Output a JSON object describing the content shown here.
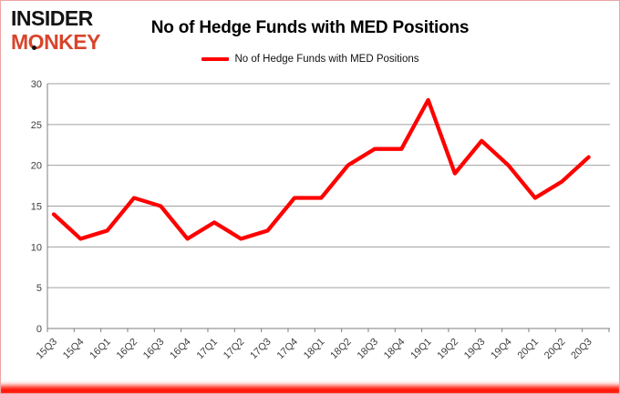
{
  "brand": {
    "line1": "INSIDER",
    "line2": "MONKEY"
  },
  "header": {
    "title": "No of Hedge Funds with MED Positions"
  },
  "legend": {
    "label": "No of Hedge Funds with MED Positions"
  },
  "colors": {
    "series_red": "#ff0000",
    "brand_red": "#d8452b",
    "gridline": "#a0a0a0",
    "axis": "#7f7f7f",
    "tick_label": "#3d3d3d",
    "border_pink": "#eda6a6",
    "bottom_bar_red": "#ff0f00"
  },
  "chart_data": {
    "type": "line",
    "title": "No of Hedge Funds with MED Positions",
    "categories": [
      "15Q3",
      "15Q4",
      "16Q1",
      "16Q2",
      "16Q3",
      "16Q4",
      "17Q1",
      "17Q2",
      "17Q3",
      "17Q4",
      "18Q1",
      "18Q2",
      "18Q3",
      "18Q4",
      "19Q1",
      "19Q2",
      "19Q3",
      "19Q4",
      "20Q1",
      "20Q2",
      "20Q3"
    ],
    "series": [
      {
        "name": "No of Hedge Funds with MED Positions",
        "color": "#ff0000",
        "values": [
          14,
          11,
          12,
          16,
          15,
          11,
          13,
          11,
          12,
          16,
          16,
          20,
          22,
          22,
          28,
          19,
          23,
          20,
          16,
          18,
          21
        ]
      }
    ],
    "xlabel": "",
    "ylabel": "",
    "ylim": [
      0,
      30
    ],
    "ytick_step": 5,
    "grid": true,
    "legend_position": "top"
  }
}
